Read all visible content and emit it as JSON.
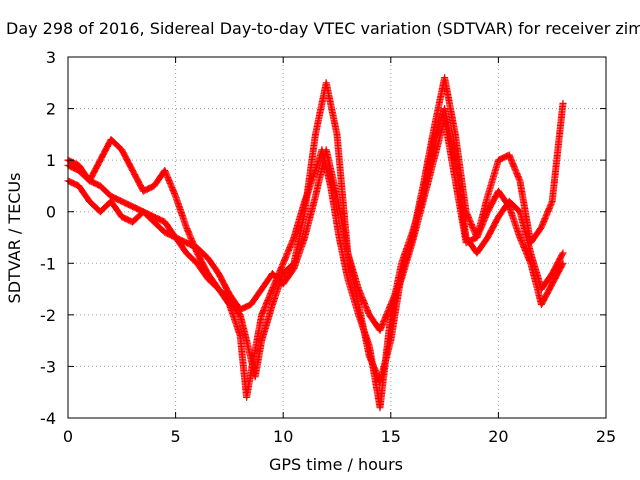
{
  "chart_data": {
    "type": "scatter",
    "title": "Day 298 of 2016, Sidereal Day-to-day VTEC variation (SDTVAR) for receiver zim",
    "xlabel": "GPS time / hours",
    "ylabel": "SDTVAR / TECUs",
    "xlim": [
      0,
      25
    ],
    "ylim": [
      -4,
      3
    ],
    "x_ticks": [
      "0",
      "5",
      "10",
      "15",
      "20",
      "25"
    ],
    "y_ticks": [
      "-4",
      "-3",
      "-2",
      "-1",
      "0",
      "1",
      "2",
      "3"
    ],
    "grid": true,
    "marker": "+",
    "color": "#ff0000",
    "series": [
      {
        "x": [
          0.0,
          0.5,
          1.0,
          1.5,
          2.0,
          2.5,
          3.0,
          3.5,
          4.0,
          4.5,
          5.0,
          5.5,
          6.0,
          6.5,
          7.0,
          7.5,
          8.0,
          8.3,
          8.6,
          9.0,
          9.5,
          10.0,
          10.5,
          11.0,
          11.5,
          11.8,
          12.2,
          12.6,
          13.0,
          13.5,
          14.0,
          14.5,
          15.0,
          15.5,
          16.0,
          16.5,
          17.0,
          17.5,
          18.0,
          18.5,
          19.0,
          19.5,
          20.0,
          20.5,
          21.0,
          21.5,
          22.0,
          22.5,
          23.0
        ],
        "y": [
          0.9,
          0.8,
          0.6,
          0.5,
          0.3,
          0.2,
          0.1,
          0.0,
          -0.2,
          -0.4,
          -0.5,
          -0.8,
          -1.0,
          -1.3,
          -1.5,
          -1.8,
          -2.4,
          -3.6,
          -2.9,
          -2.0,
          -1.5,
          -1.0,
          -0.5,
          0.2,
          0.8,
          1.2,
          0.5,
          -0.5,
          -1.3,
          -2.0,
          -2.6,
          -3.8,
          -2.0,
          -1.0,
          -0.4,
          0.3,
          1.4,
          2.0,
          1.0,
          -0.5,
          -0.8,
          -0.5,
          -0.1,
          0.2,
          0.0,
          -0.8,
          -1.5,
          -1.2,
          -0.8
        ]
      },
      {
        "x": [
          0.0,
          0.5,
          1.0,
          1.5,
          2.0,
          2.5,
          3.0,
          3.5,
          4.0,
          4.5,
          5.0,
          5.5,
          6.0,
          6.5,
          7.0,
          7.5,
          8.0,
          8.3,
          8.7,
          9.0,
          9.5,
          10.0,
          10.5,
          11.0,
          11.5,
          12.0,
          12.5,
          13.0,
          13.5,
          14.0,
          14.5,
          15.0,
          15.5,
          16.0,
          16.5,
          17.0,
          17.5,
          18.0,
          18.5,
          19.0,
          19.5,
          20.0,
          20.5,
          21.0,
          21.5,
          22.0,
          22.5,
          23.0
        ],
        "y": [
          1.0,
          0.9,
          0.6,
          1.0,
          1.4,
          1.2,
          0.8,
          0.4,
          0.5,
          0.8,
          0.3,
          -0.3,
          -0.8,
          -1.2,
          -1.5,
          -1.7,
          -2.0,
          -2.5,
          -3.2,
          -2.5,
          -1.8,
          -1.2,
          -1.0,
          0.0,
          1.5,
          2.5,
          1.5,
          -0.8,
          -1.8,
          -2.8,
          -3.3,
          -2.5,
          -1.2,
          -0.5,
          0.5,
          1.6,
          2.6,
          1.5,
          0.0,
          -0.5,
          0.3,
          1.0,
          1.1,
          0.6,
          -0.6,
          -0.3,
          0.2,
          2.1
        ]
      },
      {
        "x": [
          0.0,
          0.5,
          1.0,
          1.5,
          2.0,
          2.5,
          3.0,
          3.5,
          4.0,
          4.5,
          5.0,
          5.5,
          6.0,
          6.5,
          7.0,
          7.5,
          8.0,
          8.5,
          9.0,
          9.5,
          10.0,
          10.5,
          11.0,
          11.5,
          12.0,
          12.5,
          13.0,
          13.5,
          14.0,
          14.5,
          15.0,
          15.5,
          16.0,
          16.5,
          17.0,
          17.5,
          18.0,
          18.5,
          19.0,
          19.5,
          20.0,
          20.5,
          21.0,
          21.5,
          22.0,
          22.5,
          23.0
        ],
        "y": [
          0.6,
          0.5,
          0.2,
          0.0,
          0.2,
          -0.1,
          -0.2,
          0.0,
          -0.1,
          -0.2,
          -0.5,
          -0.6,
          -0.7,
          -0.9,
          -1.2,
          -1.6,
          -1.9,
          -1.8,
          -1.5,
          -1.2,
          -1.4,
          -1.1,
          -0.5,
          0.3,
          1.2,
          0.3,
          -0.8,
          -1.5,
          -2.0,
          -2.3,
          -1.8,
          -1.3,
          -0.6,
          0.2,
          1.0,
          1.8,
          0.6,
          -0.6,
          -0.5,
          0.0,
          0.4,
          0.1,
          -0.5,
          -1.0,
          -1.8,
          -1.4,
          -1.0
        ]
      }
    ]
  }
}
